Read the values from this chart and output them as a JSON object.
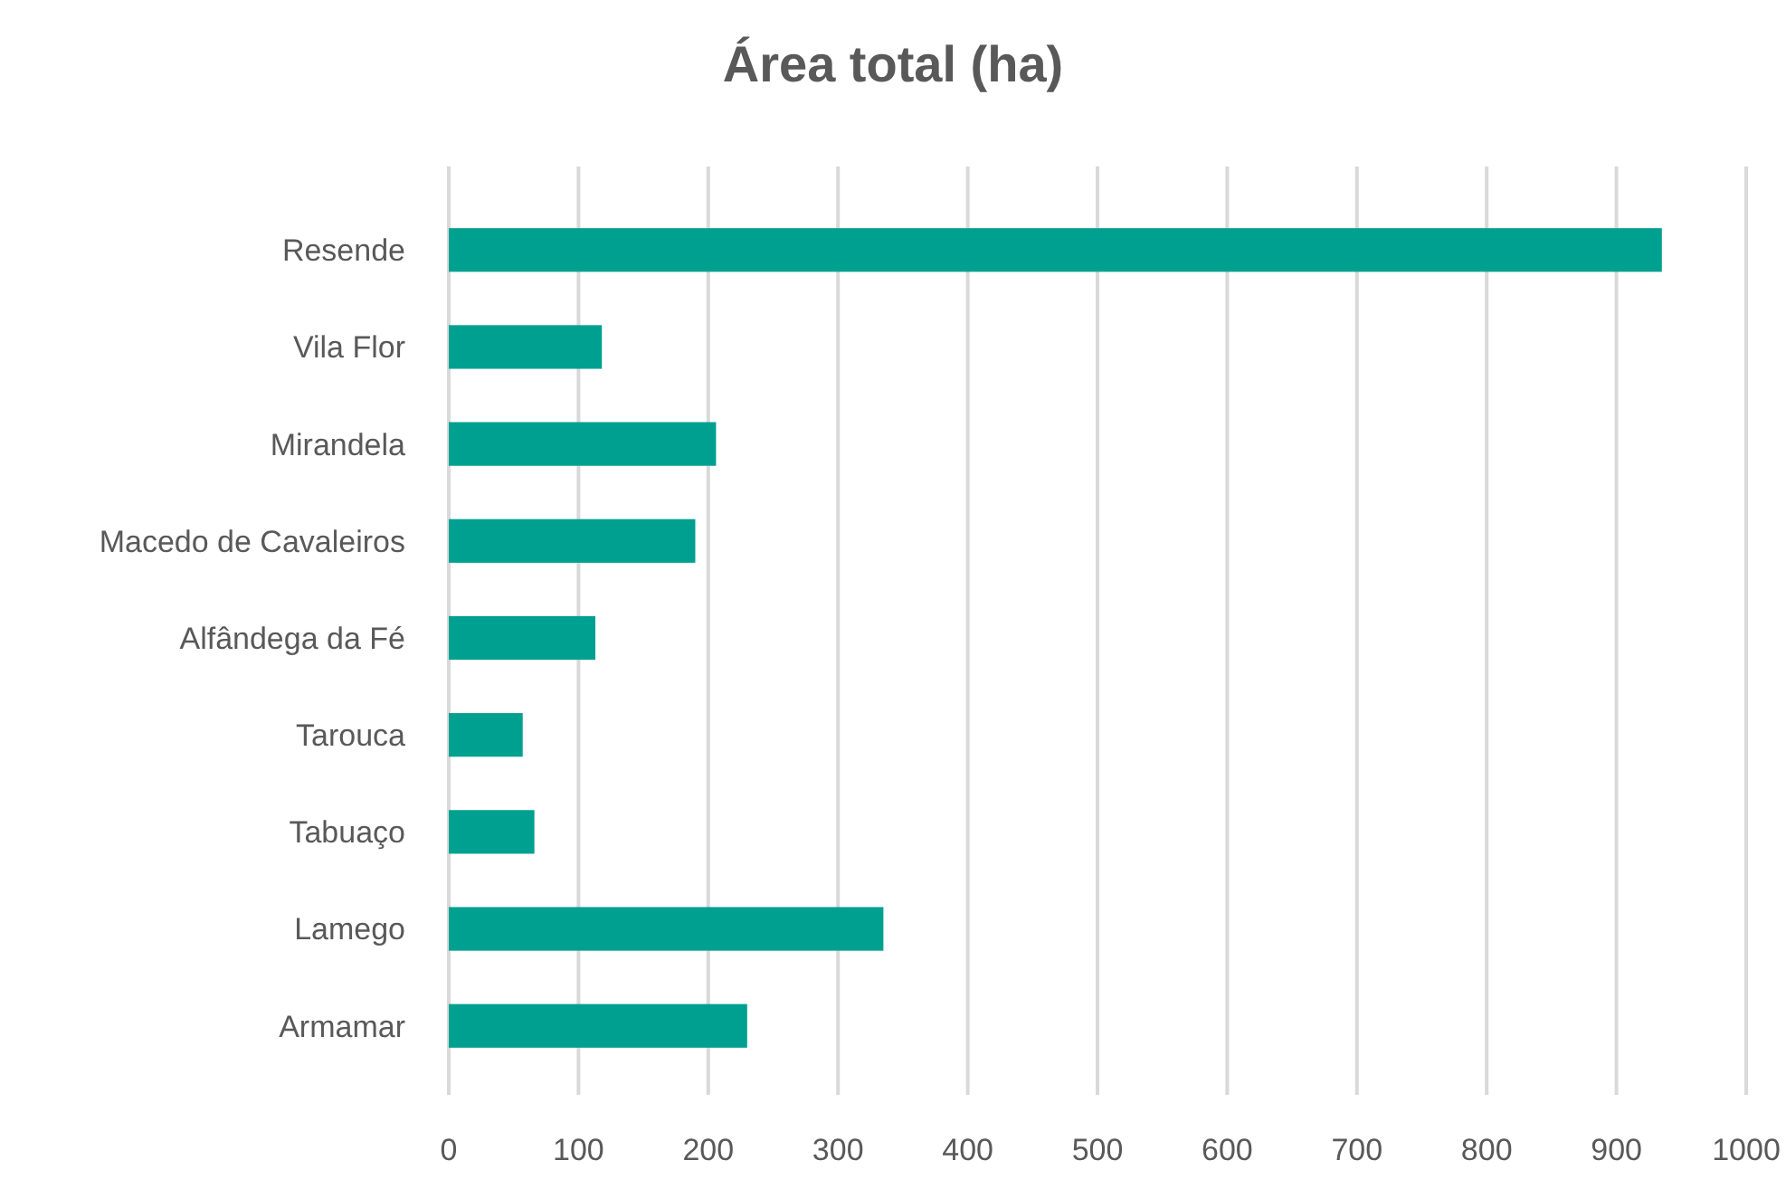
{
  "chart_data": {
    "type": "bar",
    "orientation": "horizontal",
    "title": "Área total (ha)",
    "categories": [
      "Resende",
      "Vila Flor",
      "Mirandela",
      "Macedo de Cavaleiros",
      "Alfândega da Fé",
      "Tarouca",
      "Tabuaço",
      "Lamego",
      "Armamar"
    ],
    "values": [
      935,
      118,
      206,
      190,
      113,
      57,
      66,
      335,
      230
    ],
    "color": "#00a091",
    "xlim": [
      0,
      1000
    ],
    "xticks": [
      0,
      100,
      200,
      300,
      400,
      500,
      600,
      700,
      800,
      900,
      1000
    ],
    "grid": "x"
  }
}
